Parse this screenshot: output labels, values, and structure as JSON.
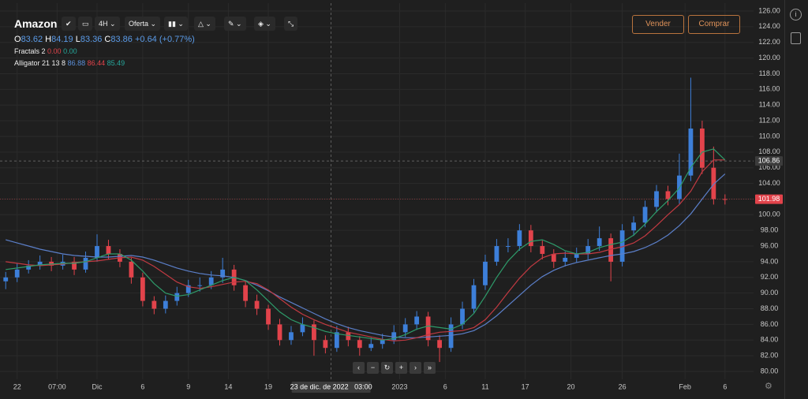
{
  "header": {
    "title": "Amazon",
    "timeframe": "4H",
    "price_type": "Oferta",
    "ohlc": [
      {
        "key": "O",
        "value": "83.62"
      },
      {
        "key": "H",
        "value": "84.19"
      },
      {
        "key": "L",
        "value": "83.36"
      },
      {
        "key": "C",
        "value": "83.86"
      }
    ],
    "change": "+0.64 (+0.77%)",
    "indicators": [
      {
        "name": "Fractals 2",
        "values": [
          {
            "text": "0.00",
            "color": "#e2434b"
          },
          {
            "text": "0.00",
            "color": "#26a69a"
          }
        ]
      },
      {
        "name": "Alligator 21 13 8",
        "values": [
          {
            "text": "86.88",
            "color": "#5b8fd9"
          },
          {
            "text": "86.44",
            "color": "#e2434b"
          },
          {
            "text": "85.49",
            "color": "#26a69a"
          }
        ]
      }
    ]
  },
  "buttons": {
    "sell": "Vender",
    "buy": "Comprar"
  },
  "chart_data": {
    "type": "candlestick",
    "up_color": "#3d7fd9",
    "down_color": "#e2434b",
    "open": [
      91.5,
      92,
      93,
      93.5,
      94,
      93.5,
      94,
      93,
      94.5,
      96,
      95,
      94,
      92,
      89,
      88,
      89,
      90,
      91,
      91,
      92,
      93,
      91,
      89,
      88,
      86,
      84,
      85,
      86,
      84,
      83,
      85,
      84,
      83,
      83.5,
      84,
      85,
      86,
      87,
      84,
      83,
      86,
      88,
      91,
      94,
      96,
      96,
      98,
      96,
      95,
      94,
      94.5,
      95,
      96,
      97,
      94,
      98,
      99,
      101,
      103,
      102,
      105,
      111,
      106,
      102
    ],
    "high": [
      92.7,
      93.8,
      94.2,
      94.8,
      94.6,
      94.9,
      94.6,
      95.3,
      97.5,
      96.8,
      95.6,
      94.5,
      92.6,
      89.6,
      89.7,
      90.8,
      91.7,
      92,
      92.8,
      94.5,
      93.6,
      91.6,
      89.8,
      88.5,
      86.7,
      85.8,
      86.9,
      86.5,
      84.6,
      85.8,
      85.7,
      84.5,
      84.3,
      84.8,
      85.9,
      86.8,
      87.7,
      87.6,
      84.6,
      86.9,
      88.9,
      91.8,
      94.9,
      96.9,
      97,
      98.8,
      98.7,
      96.7,
      95.6,
      95.3,
      95.8,
      96.9,
      98.5,
      97.6,
      98.8,
      99.8,
      101.8,
      103.8,
      103.7,
      107.8,
      117.5,
      112,
      108.7,
      102.6
    ],
    "low": [
      90.5,
      91.4,
      92.5,
      93,
      92.8,
      93,
      92.3,
      92.6,
      94,
      94.3,
      93.3,
      91.2,
      88.3,
      87.3,
      87.4,
      88.4,
      89.5,
      90.2,
      90.5,
      91.3,
      90.3,
      88.2,
      87.2,
      85.3,
      83.3,
      83.4,
      84.5,
      82,
      82.3,
      82.5,
      83.2,
      82,
      82.6,
      82.9,
      83.5,
      84.4,
      85.3,
      83.2,
      81.2,
      82.5,
      85.4,
      87.5,
      90.4,
      93.5,
      95.2,
      95.4,
      95.2,
      94.3,
      93.2,
      93.4,
      93.9,
      94.3,
      95.4,
      91.5,
      93.4,
      97.3,
      98.4,
      100.3,
      101.2,
      101.4,
      104.3,
      105.2,
      101.3,
      101.3
    ],
    "close": [
      92,
      93,
      93.5,
      94,
      93.5,
      94,
      93,
      94.5,
      96,
      95,
      94,
      92,
      89,
      88,
      89,
      90,
      91,
      91,
      92,
      93,
      91,
      89,
      88,
      86,
      84,
      85,
      86,
      84,
      83,
      85,
      84,
      83,
      83.5,
      84,
      85,
      86,
      87,
      84,
      83,
      86,
      88,
      91,
      94,
      96,
      96,
      98,
      96,
      95,
      94,
      94.5,
      95,
      96,
      97,
      94,
      98,
      99,
      101,
      103,
      102,
      105,
      111,
      106,
      102,
      101.98
    ],
    "series": [
      {
        "color": "#5b7fc9",
        "values": [
          96.8,
          96.4,
          96,
          95.6,
          95.3,
          95,
          94.8,
          94.7,
          94.6,
          94.6,
          94.7,
          94.8,
          94.6,
          94.2,
          93.7,
          93.2,
          92.8,
          92.5,
          92.3,
          92.2,
          92,
          91.6,
          91,
          90.3,
          89.5,
          88.8,
          88.1,
          87.4,
          86.7,
          86.1,
          85.6,
          85.2,
          84.9,
          84.6,
          84.4,
          84.3,
          84.3,
          84.4,
          84.5,
          84.6,
          84.8,
          85.2,
          86,
          87.1,
          88.4,
          89.7,
          91,
          92.1,
          92.9,
          93.5,
          93.9,
          94.2,
          94.5,
          94.8,
          95,
          95.3,
          95.8,
          96.5,
          97.4,
          98.6,
          100.1,
          102,
          103.9,
          105.2
        ]
      },
      {
        "color": "#c23a42",
        "values": [
          94,
          93.8,
          93.6,
          93.5,
          93.6,
          93.7,
          93.9,
          94,
          94.1,
          94.3,
          94.5,
          94.6,
          94.2,
          93.4,
          92.4,
          91.4,
          90.8,
          90.6,
          90.8,
          91.1,
          91.4,
          91.5,
          91.2,
          90.4,
          89.3,
          88.2,
          87.3,
          86.6,
          86,
          85.5,
          85,
          84.7,
          84.4,
          84.1,
          83.9,
          84,
          84.3,
          84.7,
          85,
          85.1,
          85.2,
          85.6,
          86.6,
          88.2,
          90.1,
          91.9,
          93.4,
          94.5,
          95,
          95.1,
          95,
          95,
          95.2,
          95.6,
          95.9,
          96.4,
          97.3,
          98.6,
          100,
          101.3,
          103,
          105.5,
          107,
          107
        ]
      },
      {
        "color": "#2e9b6a",
        "values": [
          93,
          93.2,
          93.4,
          93.6,
          93.7,
          93.8,
          93.8,
          94,
          94.5,
          95,
          95,
          94.2,
          92.8,
          91.2,
          90,
          89.6,
          89.8,
          90.4,
          91,
          91.6,
          92,
          91.6,
          90.4,
          89,
          87.6,
          86.6,
          86,
          85.6,
          85.1,
          84.8,
          84.6,
          84.4,
          84.2,
          84,
          84.2,
          84.7,
          85.4,
          85.8,
          85.6,
          85.4,
          86,
          87.4,
          89.6,
          92,
          94.1,
          95.6,
          96.6,
          96.8,
          96.2,
          95.4,
          95,
          95.2,
          95.8,
          96.2,
          96.5,
          97.4,
          98.8,
          100.4,
          101.8,
          103.4,
          106,
          108,
          108.4,
          107
        ]
      }
    ],
    "xlim": [
      -0.5,
      65.5
    ],
    "xticks": [
      {
        "value": 1,
        "label": "22"
      },
      {
        "value": 4.5,
        "label": "07:00"
      },
      {
        "value": 8,
        "label": "Dic"
      },
      {
        "value": 12,
        "label": "6"
      },
      {
        "value": 16,
        "label": "9"
      },
      {
        "value": 19.5,
        "label": "14"
      },
      {
        "value": 23,
        "label": "19"
      },
      {
        "value": 34.5,
        "label": "2023"
      },
      {
        "value": 38.5,
        "label": "6"
      },
      {
        "value": 42,
        "label": "11"
      },
      {
        "value": 45.5,
        "label": "17"
      },
      {
        "value": 49.5,
        "label": "20"
      },
      {
        "value": 54,
        "label": "26"
      },
      {
        "value": 59.5,
        "label": "Feb"
      },
      {
        "value": 63,
        "label": "6"
      }
    ],
    "ylim": [
      80,
      126
    ],
    "yticks": [
      {
        "value": 80,
        "label": "80.00"
      },
      {
        "value": 82,
        "label": "82.00"
      },
      {
        "value": 84,
        "label": "84.00"
      },
      {
        "value": 86,
        "label": "86.00"
      },
      {
        "value": 88,
        "label": "88.00"
      },
      {
        "value": 90,
        "label": "90.00"
      },
      {
        "value": 92,
        "label": "92.00"
      },
      {
        "value": 94,
        "label": "94.00"
      },
      {
        "value": 96,
        "label": "96.00"
      },
      {
        "value": 98,
        "label": "98.00"
      },
      {
        "value": 100,
        "label": "100.00"
      },
      {
        "value": 102,
        "label": "102.00"
      },
      {
        "value": 104,
        "label": "104.00"
      },
      {
        "value": 106,
        "label": "106.00"
      },
      {
        "value": 108,
        "label": "108.00"
      },
      {
        "value": 110,
        "label": "110.00"
      },
      {
        "value": 112,
        "label": "112.00"
      },
      {
        "value": 114,
        "label": "114.00"
      },
      {
        "value": 116,
        "label": "116.00"
      },
      {
        "value": 118,
        "label": "118.00"
      },
      {
        "value": 120,
        "label": "120.00"
      },
      {
        "value": 122,
        "label": "122.00"
      },
      {
        "value": 124,
        "label": "124.00"
      },
      {
        "value": 126,
        "label": "126.00"
      }
    ],
    "grid": true,
    "crosshair": {
      "price": 106.86,
      "time": {
        "value": 28.5,
        "label": "23 de dic. de 2022   03:00"
      }
    },
    "last_price": 101.98
  }
}
